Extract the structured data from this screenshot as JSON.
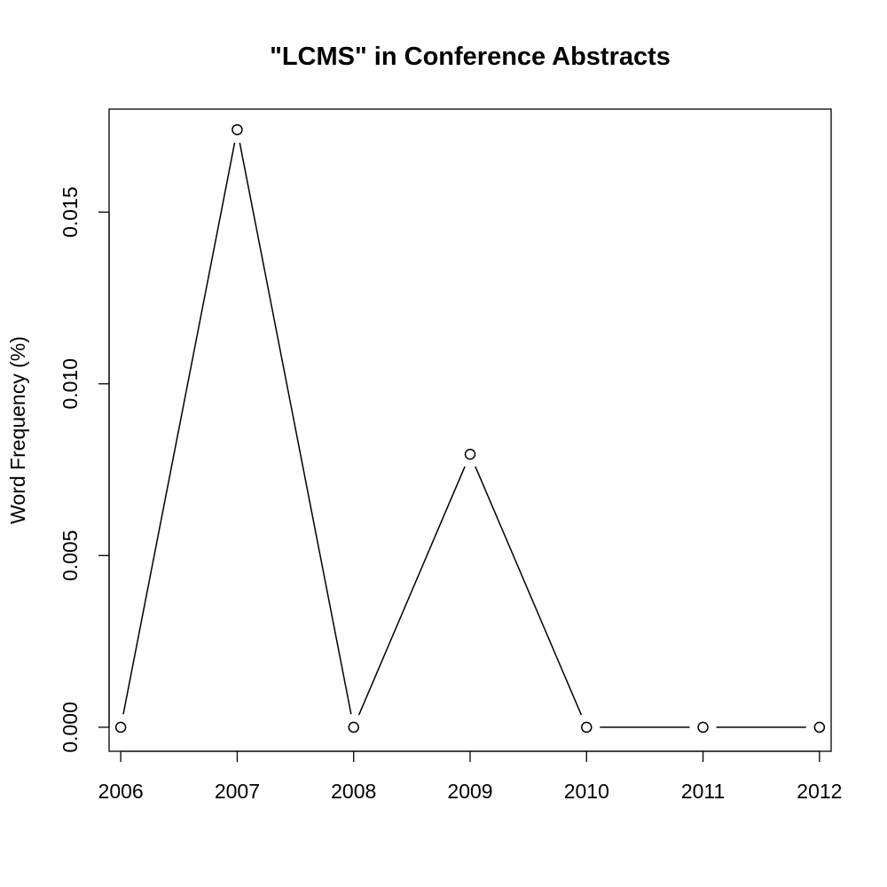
{
  "chart_data": {
    "type": "line",
    "title": "\"LCMS\" in Conference Abstracts",
    "xlabel": "",
    "ylabel": "Word Frequency (%)",
    "x": [
      2006,
      2007,
      2008,
      2009,
      2010,
      2011,
      2012
    ],
    "x_tick_labels": [
      "2006",
      "2007",
      "2008",
      "2009",
      "2010",
      "2011",
      "2012"
    ],
    "y_tick_labels": [
      "0.000",
      "0.005",
      "0.010",
      "0.015"
    ],
    "y_ticks": [
      0,
      0.005,
      0.01,
      0.015
    ],
    "series": [
      {
        "values": [
          0,
          0.0174,
          0,
          0.00795,
          0,
          0,
          0
        ]
      }
    ],
    "xlim": [
      2005.9,
      2012.1
    ],
    "ylim": [
      -0.0007,
      0.018
    ],
    "grid": false,
    "legend": "none",
    "marker": "open-circle",
    "line_color": "#000000"
  }
}
